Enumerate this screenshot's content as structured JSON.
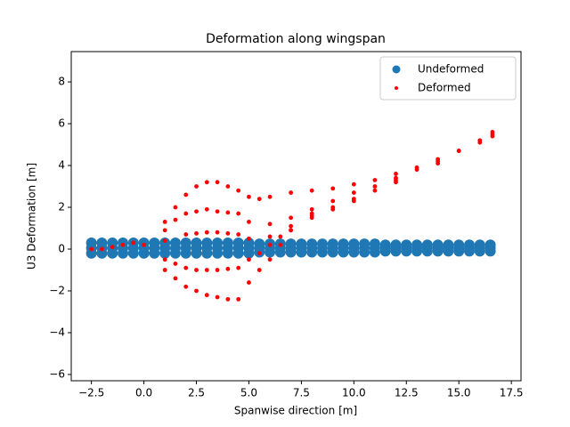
{
  "chart_data": {
    "type": "scatter",
    "title": "Deformation along wingspan",
    "xlabel": "Spanwise direction [m]",
    "ylabel": "U3 Deformation [m]",
    "xlim": [
      -3.46,
      17.96
    ],
    "ylim": [
      -6.3,
      9.45
    ],
    "xticks": [
      {
        "value": -2.5,
        "label": "−2.5"
      },
      {
        "value": 0,
        "label": "0.0"
      },
      2.5,
      {
        "value": 5,
        "label": "5.0"
      },
      7.5,
      {
        "value": 10,
        "label": "10.0"
      },
      12.5,
      {
        "value": 15,
        "label": "15.0"
      },
      17.5
    ],
    "yticks": [
      {
        "value": -6,
        "label": "−6"
      },
      {
        "value": -4,
        "label": "−4"
      },
      {
        "value": -2,
        "label": "−2"
      },
      0,
      2,
      4,
      6,
      8
    ],
    "legend": "upper right",
    "series": [
      {
        "name": "Undeformed",
        "color": "#1f77b4",
        "x": [
          -2.5,
          -2,
          -1.5,
          -1,
          -0.5,
          0,
          0.5,
          1,
          1.5,
          2,
          2.5,
          3,
          3.5,
          4,
          4.5,
          5,
          5.5,
          6,
          6.5,
          7,
          7.5,
          8,
          8.5,
          9,
          9.5,
          10,
          10.5,
          11,
          11.5,
          12,
          12.5,
          13,
          13.5,
          14,
          14.5,
          15,
          15.5,
          16,
          16.5,
          -2.5,
          -2,
          -1.5,
          -1,
          -0.5,
          0,
          0.5,
          1,
          1.5,
          2,
          2.5,
          3,
          3.5,
          4,
          4.5,
          5,
          5.5,
          6,
          6.5,
          7,
          7.5,
          8,
          8.5,
          9,
          9.5,
          10,
          10.5,
          11,
          11.5,
          12,
          12.5,
          13,
          13.5,
          14,
          14.5,
          15,
          15.5,
          16,
          16.5,
          -2.5,
          -2,
          -1.5,
          -1,
          -0.5,
          0,
          0.5,
          1,
          1.5,
          2,
          2.5,
          3,
          3.5,
          4,
          4.5,
          5,
          5.5,
          6,
          6.5,
          7,
          7.5,
          8,
          8.5,
          9,
          9.5,
          10,
          10.5,
          11,
          11.5,
          12,
          12.5,
          13,
          13.5,
          14,
          14.5,
          15,
          15.5,
          16,
          16.5
        ],
        "values": [
          0.3,
          0.3,
          0.3,
          0.3,
          0.3,
          0.3,
          0.3,
          0.3,
          0.3,
          0.3,
          0.3,
          0.3,
          0.3,
          0.3,
          0.3,
          0.3,
          0.25,
          0.25,
          0.25,
          0.25,
          0.25,
          0.25,
          0.25,
          0.25,
          0.25,
          0.25,
          0.25,
          0.25,
          0.2,
          0.2,
          0.2,
          0.2,
          0.2,
          0.2,
          0.2,
          0.2,
          0.2,
          0.2,
          0.2,
          0.05,
          0.05,
          0.05,
          0.05,
          0.05,
          0.05,
          0.05,
          0.05,
          0.05,
          0.05,
          0.05,
          0.05,
          0.05,
          0.05,
          0.05,
          0.05,
          0.05,
          0.05,
          0.05,
          0.05,
          0.05,
          0.05,
          0.05,
          0.05,
          0.05,
          0.05,
          0.05,
          0.05,
          0.05,
          0.05,
          0.05,
          0.05,
          0.05,
          0.05,
          0.05,
          0.05,
          0.05,
          0.05,
          0.05,
          -0.2,
          -0.2,
          -0.2,
          -0.2,
          -0.2,
          -0.2,
          -0.2,
          -0.2,
          -0.2,
          -0.2,
          -0.2,
          -0.2,
          -0.2,
          -0.2,
          -0.2,
          -0.2,
          -0.15,
          -0.15,
          -0.15,
          -0.15,
          -0.15,
          -0.15,
          -0.15,
          -0.15,
          -0.15,
          -0.15,
          -0.15,
          -0.15,
          -0.1,
          -0.1,
          -0.1,
          -0.1,
          -0.1,
          -0.1,
          -0.1,
          -0.1,
          -0.1,
          -0.1,
          -0.1
        ]
      },
      {
        "name": "Deformed",
        "color": "#ff0000",
        "x": [
          -2.5,
          -2,
          -1.5,
          -1,
          -0.5,
          0,
          1,
          1.5,
          2,
          2.5,
          3,
          3.5,
          4,
          4.5,
          5,
          5.5,
          6,
          7,
          8,
          9,
          10,
          11,
          12,
          13,
          14,
          15,
          16,
          16.6,
          1,
          1.5,
          2,
          2.5,
          3,
          3.5,
          4,
          4.5,
          5,
          6,
          7,
          8,
          9,
          10,
          11,
          12,
          13,
          14,
          15,
          16,
          16.6,
          1,
          2,
          2.5,
          3,
          3.5,
          4,
          4.5,
          5,
          6,
          7,
          8,
          9,
          10,
          11,
          12,
          14,
          16.6,
          1,
          1.5,
          2,
          2.5,
          3,
          3.5,
          4,
          4.5,
          5,
          5.5,
          6,
          6.5,
          7,
          8,
          9,
          10,
          12,
          1,
          1.5,
          2,
          2.5,
          3,
          3.5,
          4,
          4.5,
          5,
          5.5,
          6,
          6.5,
          7,
          8
        ],
        "values": [
          0,
          0,
          0.1,
          0.2,
          0.3,
          0.2,
          1.3,
          2.0,
          2.6,
          3.0,
          3.2,
          3.2,
          3.0,
          2.8,
          2.5,
          2.4,
          2.5,
          2.7,
          2.8,
          2.9,
          3.1,
          3.3,
          3.6,
          3.9,
          4.3,
          4.7,
          5.2,
          5.6,
          0.9,
          1.4,
          1.7,
          1.8,
          1.9,
          1.8,
          1.75,
          1.7,
          1.3,
          1.2,
          1.5,
          1.9,
          2.3,
          2.7,
          3.0,
          3.4,
          3.8,
          4.2,
          4.7,
          5.1,
          5.5,
          0.4,
          0.7,
          0.75,
          0.8,
          0.8,
          0.75,
          0.7,
          0.5,
          0.6,
          1.1,
          1.6,
          2.0,
          2.4,
          2.8,
          3.3,
          4.1,
          5.4,
          -0.5,
          -0.7,
          -0.9,
          -1.0,
          -1.0,
          -1.0,
          -0.95,
          -0.9,
          -0.5,
          -0.2,
          0.2,
          0.6,
          0.9,
          1.5,
          1.9,
          2.3,
          3.2,
          -1.0,
          -1.4,
          -1.8,
          -2.0,
          -2.2,
          -2.3,
          -2.4,
          -2.4,
          -1.6,
          -1.0,
          -0.5,
          0.2,
          0.9,
          1.7
        ]
      }
    ]
  }
}
